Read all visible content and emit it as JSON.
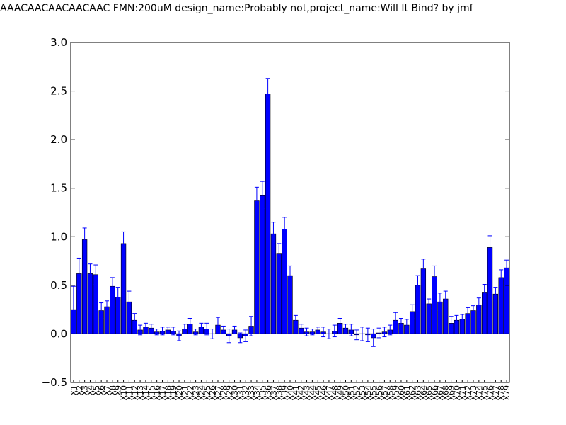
{
  "chart_data": {
    "type": "bar",
    "title": "AAACAACAACAACAAC  FMN:200uM  design_name:Probably not,project_name:Will It Bind? by jmf",
    "xlabel": "",
    "ylabel": "",
    "ylim": [
      -0.5,
      3.0
    ],
    "y_ticks": [
      "−0.5",
      "0.0",
      "0.5",
      "1.0",
      "1.5",
      "2.0",
      "2.5",
      "3.0"
    ],
    "grid": false,
    "bar_color": "#0000ff",
    "error_color": "#0000ff",
    "categories": [
      "X1",
      "X2",
      "X3",
      "X4",
      "X5",
      "X6",
      "X7",
      "X8",
      "X9",
      "X10",
      "X11",
      "X12",
      "X13",
      "X14",
      "X15",
      "X16",
      "X17",
      "X18",
      "X19",
      "X20",
      "X21",
      "X22",
      "X23",
      "X24",
      "X25",
      "X26",
      "X27",
      "X28",
      "X29",
      "X30",
      "X31",
      "X32",
      "X33",
      "X34",
      "X35",
      "X36",
      "X37",
      "X38",
      "X39",
      "X40",
      "X41",
      "X42",
      "X43",
      "X44",
      "X45",
      "X46",
      "X47",
      "X48",
      "X49",
      "X50",
      "X51",
      "X52",
      "X53",
      "X54",
      "X55",
      "X56",
      "X57",
      "X58",
      "X59",
      "X60",
      "X61",
      "X62",
      "X63",
      "X64",
      "X65",
      "X66",
      "X67",
      "X68",
      "X69",
      "X70",
      "X71",
      "X72",
      "X73",
      "X74",
      "X75",
      "X76",
      "X77",
      "X78",
      "X79"
    ],
    "values": [
      0.25,
      0.62,
      0.97,
      0.62,
      0.61,
      0.24,
      0.28,
      0.49,
      0.38,
      0.93,
      0.33,
      0.14,
      0.04,
      0.07,
      0.06,
      0.02,
      0.03,
      0.04,
      0.03,
      -0.02,
      0.05,
      0.1,
      0.02,
      0.07,
      0.05,
      0.0,
      0.09,
      0.04,
      -0.02,
      0.04,
      -0.04,
      -0.02,
      0.08,
      1.37,
      1.43,
      2.47,
      1.03,
      0.83,
      1.08,
      0.6,
      0.14,
      0.06,
      0.02,
      0.02,
      0.04,
      0.02,
      0.0,
      0.03,
      0.11,
      0.06,
      0.04,
      -0.01,
      0.0,
      -0.01,
      -0.04,
      0.01,
      0.02,
      0.04,
      0.14,
      0.11,
      0.09,
      0.23,
      0.5,
      0.67,
      0.31,
      0.59,
      0.33,
      0.36,
      0.11,
      0.14,
      0.15,
      0.21,
      0.24,
      0.3,
      0.43,
      0.89,
      0.41,
      0.58,
      0.68
    ],
    "errors": [
      0.24,
      0.16,
      0.12,
      0.1,
      0.1,
      0.08,
      0.06,
      0.09,
      0.1,
      0.12,
      0.11,
      0.07,
      0.05,
      0.04,
      0.04,
      0.03,
      0.04,
      0.03,
      0.04,
      0.05,
      0.05,
      0.06,
      0.03,
      0.04,
      0.06,
      0.05,
      0.08,
      0.04,
      0.07,
      0.04,
      0.05,
      0.06,
      0.1,
      0.14,
      0.14,
      0.16,
      0.12,
      0.1,
      0.12,
      0.1,
      0.05,
      0.04,
      0.04,
      0.03,
      0.03,
      0.05,
      0.05,
      0.06,
      0.05,
      0.04,
      0.06,
      0.05,
      0.07,
      0.07,
      0.09,
      0.05,
      0.05,
      0.05,
      0.08,
      0.05,
      0.06,
      0.07,
      0.1,
      0.1,
      0.05,
      0.11,
      0.09,
      0.08,
      0.07,
      0.05,
      0.05,
      0.06,
      0.05,
      0.07,
      0.08,
      0.12,
      0.07,
      0.08,
      0.08
    ]
  }
}
